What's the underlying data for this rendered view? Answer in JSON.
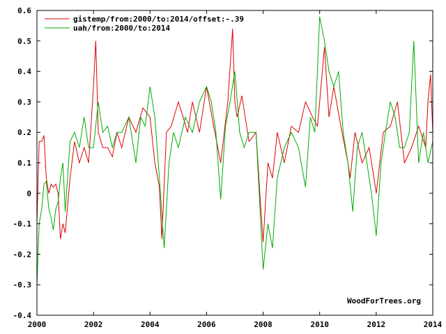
{
  "chart_data": {
    "type": "line",
    "xlim": [
      2000,
      2014
    ],
    "ylim": [
      -0.4,
      0.6
    ],
    "x_ticks": [
      2000,
      2002,
      2004,
      2006,
      2008,
      2010,
      2012,
      2014
    ],
    "y_ticks": [
      -0.4,
      -0.3,
      -0.2,
      -0.1,
      0,
      0.1,
      0.2,
      0.3,
      0.4,
      0.5,
      0.6
    ],
    "x_tick_labels": [
      "2000",
      "2002",
      "2004",
      "2006",
      "2008",
      "2010",
      "2012",
      "2014"
    ],
    "y_tick_labels": [
      "-0.4",
      "-0.3",
      "-0.2",
      "-0.1",
      "0",
      "0.1",
      "0.2",
      "0.3",
      "0.4",
      "0.5",
      "0.6"
    ],
    "grid": false,
    "legend_position": "top-left",
    "watermark": "WoodForTrees.org",
    "series": [
      {
        "name": "gistemp/from:2000/to:2014/offset:-.39",
        "color": "#dd0000",
        "x": [
          2000.0,
          2000.08,
          2000.17,
          2000.25,
          2000.33,
          2000.42,
          2000.5,
          2000.58,
          2000.67,
          2000.75,
          2000.83,
          2000.92,
          2001.0,
          2001.17,
          2001.33,
          2001.5,
          2001.67,
          2001.83,
          2002.0,
          2002.08,
          2002.17,
          2002.33,
          2002.5,
          2002.67,
          2002.83,
          2003.0,
          2003.25,
          2003.5,
          2003.75,
          2004.0,
          2004.17,
          2004.33,
          2004.42,
          2004.5,
          2004.58,
          2004.75,
          2005.0,
          2005.17,
          2005.33,
          2005.5,
          2005.75,
          2006.0,
          2006.25,
          2006.5,
          2006.75,
          2006.92,
          2007.0,
          2007.08,
          2007.25,
          2007.5,
          2007.75,
          2007.92,
          2008.0,
          2008.17,
          2008.33,
          2008.5,
          2008.75,
          2009.0,
          2009.25,
          2009.5,
          2009.75,
          2009.92,
          2010.0,
          2010.17,
          2010.33,
          2010.5,
          2010.75,
          2011.0,
          2011.08,
          2011.25,
          2011.5,
          2011.75,
          2011.92,
          2012.0,
          2012.25,
          2012.5,
          2012.75,
          2013.0,
          2013.25,
          2013.5,
          2013.75,
          2013.83,
          2013.92,
          2014.0
        ],
        "values": [
          -0.1,
          0.17,
          0.17,
          0.19,
          0.05,
          0.0,
          0.03,
          0.02,
          0.03,
          0.0,
          -0.15,
          -0.1,
          -0.13,
          0.05,
          0.17,
          0.1,
          0.15,
          0.1,
          0.35,
          0.5,
          0.2,
          0.15,
          0.15,
          0.12,
          0.2,
          0.15,
          0.25,
          0.2,
          0.28,
          0.25,
          0.1,
          0.02,
          -0.15,
          0.03,
          0.2,
          0.22,
          0.3,
          0.25,
          0.2,
          0.3,
          0.2,
          0.35,
          0.22,
          0.1,
          0.3,
          0.54,
          0.3,
          0.25,
          0.32,
          0.17,
          0.2,
          -0.05,
          -0.16,
          0.1,
          0.05,
          0.2,
          0.1,
          0.22,
          0.2,
          0.3,
          0.25,
          0.22,
          0.3,
          0.48,
          0.25,
          0.35,
          0.22,
          0.1,
          0.05,
          0.2,
          0.1,
          0.15,
          0.05,
          0.0,
          0.2,
          0.22,
          0.3,
          0.1,
          0.15,
          0.22,
          0.15,
          0.3,
          0.39,
          0.2
        ]
      },
      {
        "name": "uah/from:2000/to:2014",
        "color": "#00aa00",
        "x": [
          2000.0,
          2000.08,
          2000.17,
          2000.25,
          2000.33,
          2000.42,
          2000.5,
          2000.58,
          2000.67,
          2000.75,
          2000.83,
          2000.92,
          2001.0,
          2001.17,
          2001.33,
          2001.5,
          2001.67,
          2001.83,
          2002.0,
          2002.17,
          2002.33,
          2002.5,
          2002.67,
          2002.83,
          2003.0,
          2003.25,
          2003.5,
          2003.67,
          2003.83,
          2004.0,
          2004.17,
          2004.33,
          2004.5,
          2004.67,
          2004.83,
          2005.0,
          2005.25,
          2005.5,
          2005.75,
          2006.0,
          2006.17,
          2006.33,
          2006.5,
          2006.67,
          2006.83,
          2007.0,
          2007.17,
          2007.33,
          2007.5,
          2007.75,
          2008.0,
          2008.17,
          2008.33,
          2008.5,
          2008.75,
          2009.0,
          2009.25,
          2009.5,
          2009.67,
          2009.83,
          2010.0,
          2010.17,
          2010.33,
          2010.5,
          2010.67,
          2010.83,
          2011.0,
          2011.17,
          2011.33,
          2011.5,
          2011.67,
          2011.83,
          2012.0,
          2012.17,
          2012.33,
          2012.5,
          2012.67,
          2012.83,
          2013.0,
          2013.17,
          2013.33,
          2013.5,
          2013.67,
          2013.83,
          2014.0
        ],
        "values": [
          -0.3,
          -0.1,
          -0.05,
          0.03,
          0.04,
          -0.05,
          -0.08,
          -0.12,
          -0.05,
          -0.03,
          0.05,
          0.1,
          -0.06,
          0.17,
          0.2,
          0.15,
          0.25,
          0.15,
          0.15,
          0.3,
          0.2,
          0.22,
          0.15,
          0.2,
          0.2,
          0.25,
          0.1,
          0.25,
          0.22,
          0.35,
          0.25,
          0.05,
          -0.18,
          0.1,
          0.2,
          0.15,
          0.25,
          0.2,
          0.3,
          0.35,
          0.3,
          0.2,
          -0.02,
          0.22,
          0.3,
          0.4,
          0.2,
          0.15,
          0.2,
          0.2,
          -0.25,
          -0.1,
          -0.18,
          0.05,
          0.15,
          0.2,
          0.15,
          0.02,
          0.25,
          0.2,
          0.58,
          0.5,
          0.4,
          0.35,
          0.4,
          0.2,
          0.1,
          -0.06,
          0.15,
          0.2,
          0.1,
          0.0,
          -0.14,
          0.1,
          0.2,
          0.3,
          0.25,
          0.15,
          0.15,
          0.2,
          0.5,
          0.1,
          0.2,
          0.1,
          0.17
        ]
      }
    ]
  }
}
